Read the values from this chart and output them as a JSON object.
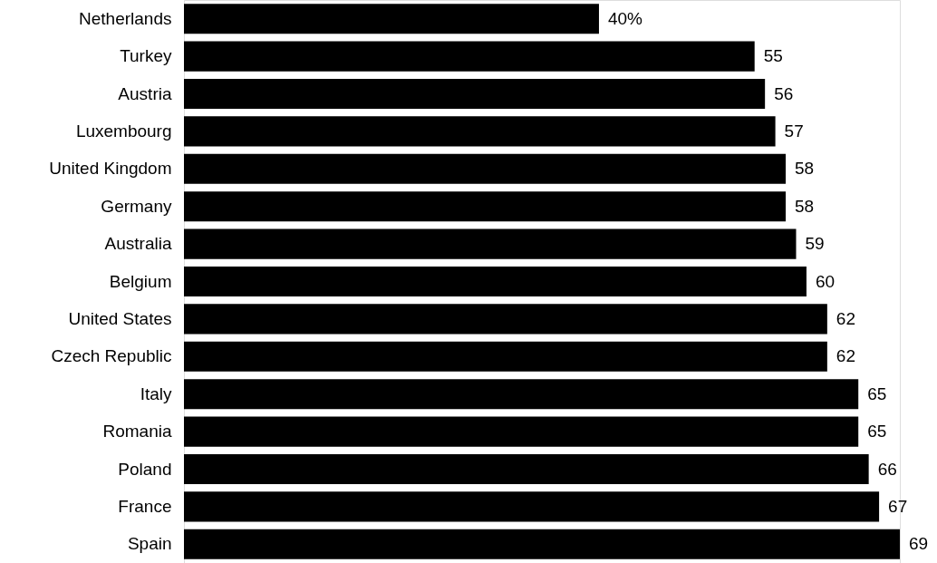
{
  "chart_data": {
    "type": "bar",
    "orientation": "horizontal",
    "categories": [
      "Netherlands",
      "Turkey",
      "Austria",
      "Luxembourg",
      "United Kingdom",
      "Germany",
      "Australia",
      "Belgium",
      "United States",
      "Czech Republic",
      "Italy",
      "Romania",
      "Poland",
      "France",
      "Spain"
    ],
    "values": [
      40,
      55,
      56,
      57,
      58,
      58,
      59,
      60,
      62,
      62,
      65,
      65,
      66,
      67,
      69
    ],
    "value_labels": [
      "40%",
      "55",
      "56",
      "57",
      "58",
      "58",
      "59",
      "60",
      "62",
      "62",
      "65",
      "65",
      "66",
      "67",
      "69"
    ],
    "color": "#000000"
  }
}
